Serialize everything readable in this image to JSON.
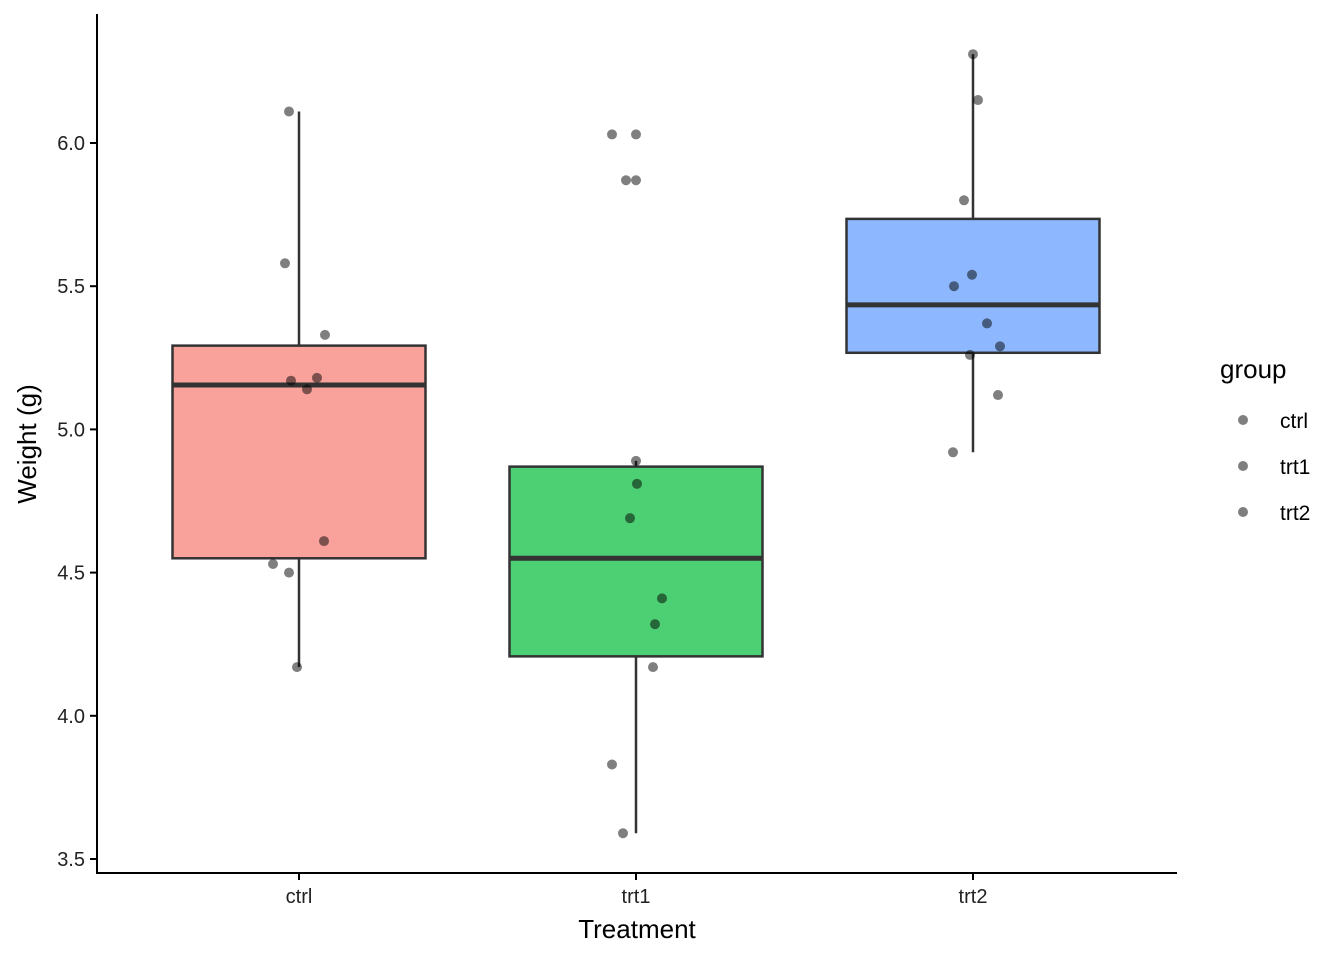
{
  "chart_data": {
    "type": "boxplot",
    "title": "",
    "xlabel": "Treatment",
    "ylabel": "Weight (g)",
    "categories": [
      "ctrl",
      "trt1",
      "trt2"
    ],
    "ylim": [
      3.45,
      6.45
    ],
    "yticks": [
      3.5,
      4.0,
      4.5,
      5.0,
      5.5,
      6.0
    ],
    "ytick_labels": [
      "3.5",
      "4.0",
      "4.5",
      "5.0",
      "5.5",
      "6.0"
    ],
    "grid": false,
    "boxes": [
      {
        "group": "ctrl",
        "color": "#F8766D",
        "q1": 4.55,
        "median": 5.155,
        "q3": 5.2925,
        "whisker_low": 4.17,
        "whisker_high": 6.11,
        "outliers": []
      },
      {
        "group": "trt1",
        "color": "#00BA38",
        "q1": 4.2075,
        "median": 4.55,
        "q3": 4.87,
        "whisker_low": 3.59,
        "whisker_high": 4.89,
        "outliers": [
          5.87,
          6.03
        ]
      },
      {
        "group": "trt2",
        "color": "#619CFF",
        "q1": 5.2675,
        "median": 5.435,
        "q3": 5.735,
        "whisker_low": 4.92,
        "whisker_high": 6.31,
        "outliers": []
      }
    ],
    "points": {
      "ctrl": [
        4.17,
        5.58,
        5.18,
        6.11,
        4.5,
        4.61,
        5.17,
        4.53,
        5.33,
        5.14
      ],
      "trt1": [
        4.81,
        4.17,
        4.41,
        3.59,
        5.87,
        3.83,
        6.03,
        4.89,
        4.32,
        4.69
      ],
      "trt2": [
        6.31,
        5.12,
        5.54,
        5.5,
        5.37,
        5.29,
        4.92,
        6.15,
        5.8,
        5.26
      ]
    },
    "legend": {
      "title": "group",
      "position": "right",
      "entries": [
        "ctrl",
        "trt1",
        "trt2"
      ]
    }
  }
}
